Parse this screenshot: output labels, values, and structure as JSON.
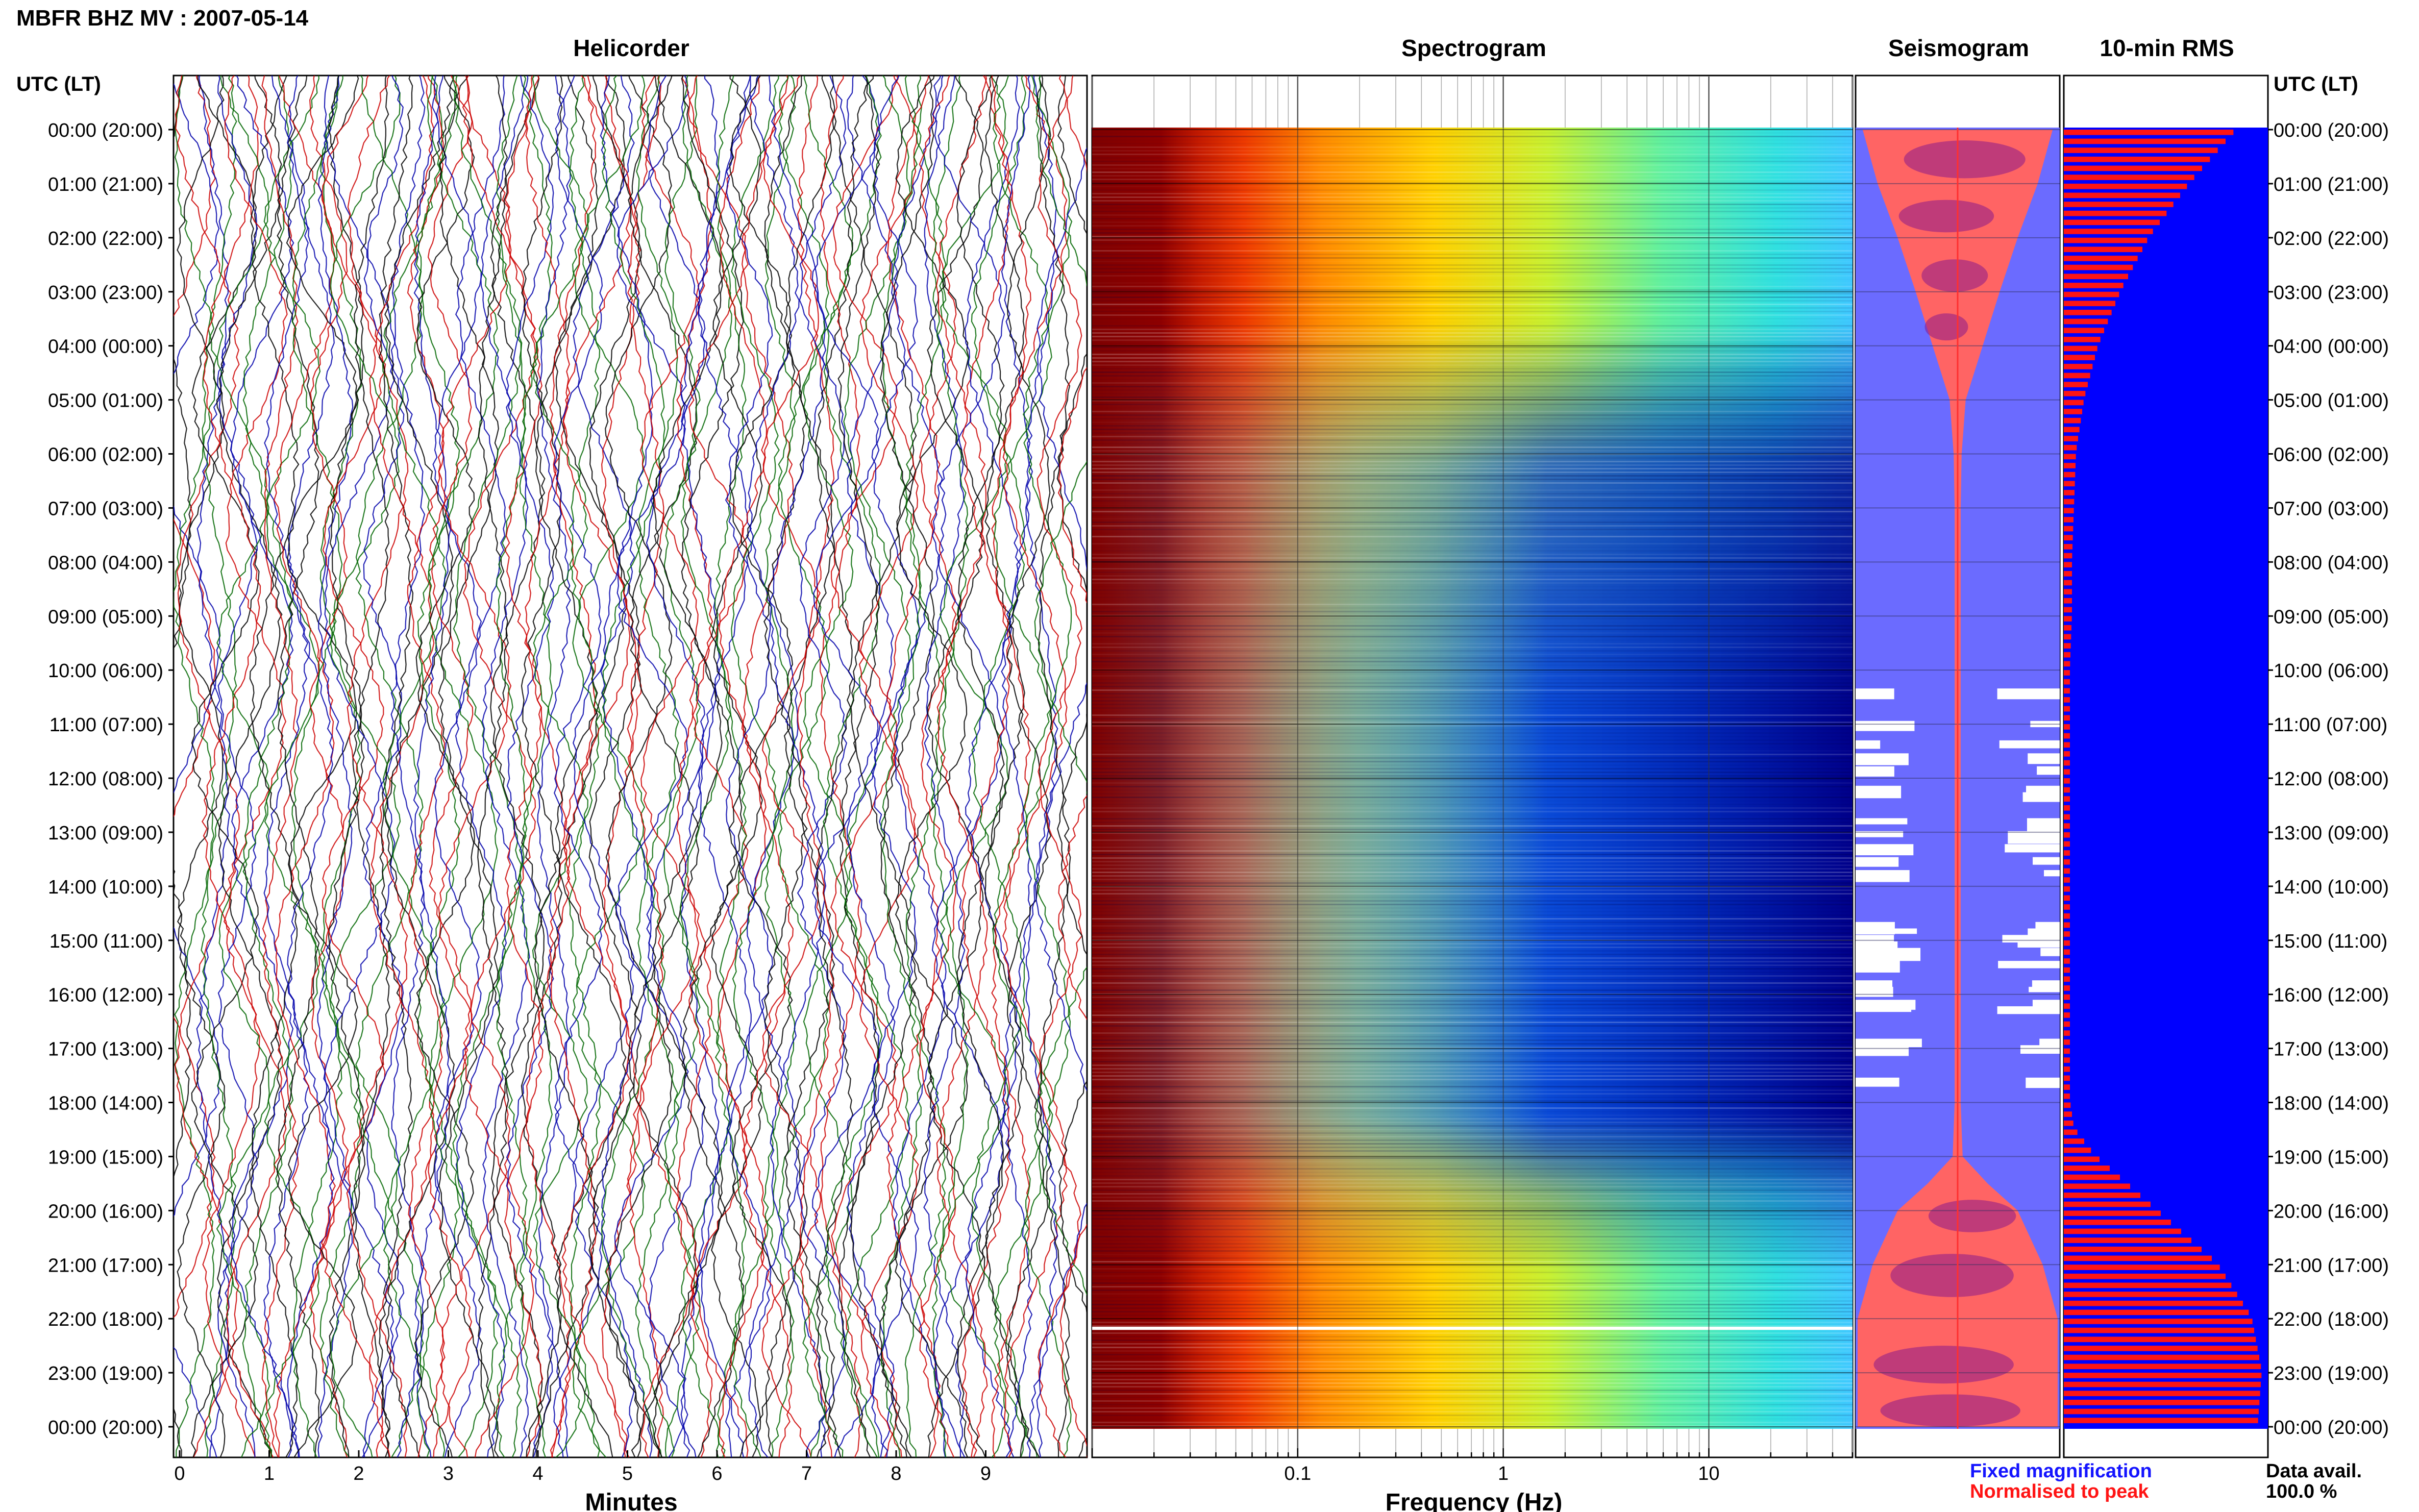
{
  "figure": {
    "title": "MBFR BHZ MV : 2007-05-14",
    "panels": {
      "helicorder": "Helicorder",
      "spectrogram": "Spectrogram",
      "seismogram": "Seismogram",
      "rms": "10-min RMS"
    },
    "time_header_left": "UTC (LT)",
    "time_header_right": "UTC (LT)",
    "legend": {
      "fixed": "Fixed magnification",
      "normalised": "Normalised to peak",
      "fixed_color": "#1414ff",
      "normalised_color": "#ff1414"
    },
    "data_avail_label": "Data avail.",
    "data_avail_value": "100.0 %"
  },
  "chart_data": [
    {
      "type": "line",
      "panel": "Helicorder",
      "xlabel": "Minutes",
      "x_ticks": [
        "0",
        "1",
        "2",
        "3",
        "4",
        "5",
        "6",
        "7",
        "8",
        "9"
      ],
      "xlim": [
        0,
        10
      ],
      "y_tick_labels": [
        "00:00 (20:00)",
        "01:00 (21:00)",
        "02:00 (22:00)",
        "03:00 (23:00)",
        "04:00 (00:00)",
        "05:00 (01:00)",
        "06:00 (02:00)",
        "07:00 (03:00)",
        "08:00 (04:00)",
        "09:00 (05:00)",
        "10:00 (06:00)",
        "11:00 (07:00)",
        "12:00 (08:00)",
        "13:00 (09:00)",
        "14:00 (10:00)",
        "15:00 (11:00)",
        "16:00 (12:00)",
        "17:00 (13:00)",
        "18:00 (14:00)",
        "19:00 (15:00)",
        "20:00 (16:00)",
        "21:00 (17:00)",
        "22:00 (18:00)",
        "23:00 (19:00)",
        "00:00 (20:00)"
      ],
      "trace_colors": [
        "#000000",
        "#cc0000",
        "#0000aa",
        "#006600"
      ]
    },
    {
      "type": "heatmap",
      "panel": "Spectrogram",
      "xlabel": "Frequency (Hz)",
      "x_scale": "log",
      "xlim": [
        0.01,
        50
      ],
      "x_ticks": [
        0.1,
        1,
        10
      ],
      "x_tick_labels": [
        "0.1",
        "1",
        "10"
      ],
      "colormap": "jet"
    },
    {
      "type": "area",
      "panel": "Seismogram",
      "series": [
        {
          "name": "Fixed magnification",
          "color": "#6b6bff"
        },
        {
          "name": "Normalised to peak",
          "color": "#ff6464"
        }
      ],
      "envelope_hours": [
        0,
        1,
        2,
        3,
        4,
        5,
        6,
        7,
        8,
        9,
        10,
        11,
        12,
        13,
        14,
        15,
        16,
        17,
        18,
        19,
        19.5,
        20,
        21,
        22,
        23,
        24
      ],
      "envelope_fraction": [
        0.95,
        0.8,
        0.6,
        0.42,
        0.25,
        0.08,
        0.04,
        0.03,
        0.03,
        0.03,
        0.03,
        0.03,
        0.03,
        0.03,
        0.03,
        0.03,
        0.03,
        0.03,
        0.03,
        0.05,
        0.3,
        0.6,
        0.85,
        1.0,
        1.0,
        1.0
      ]
    },
    {
      "type": "bar",
      "panel": "10-min RMS",
      "orientation": "horizontal",
      "series": [
        {
          "name": "RMS",
          "color": "#ff1414"
        }
      ],
      "background_color": "#0000ff",
      "profile_hours": [
        0,
        1,
        2,
        3,
        4,
        5,
        6,
        7,
        8,
        9,
        10,
        11,
        12,
        13,
        14,
        15,
        16,
        17,
        18,
        18.5,
        19,
        20,
        21,
        22,
        23,
        24
      ],
      "profile_fraction": [
        0.85,
        0.62,
        0.42,
        0.28,
        0.17,
        0.1,
        0.06,
        0.05,
        0.04,
        0.04,
        0.03,
        0.03,
        0.03,
        0.03,
        0.03,
        0.03,
        0.03,
        0.03,
        0.03,
        0.05,
        0.15,
        0.45,
        0.75,
        0.92,
        0.97,
        0.95
      ]
    }
  ]
}
